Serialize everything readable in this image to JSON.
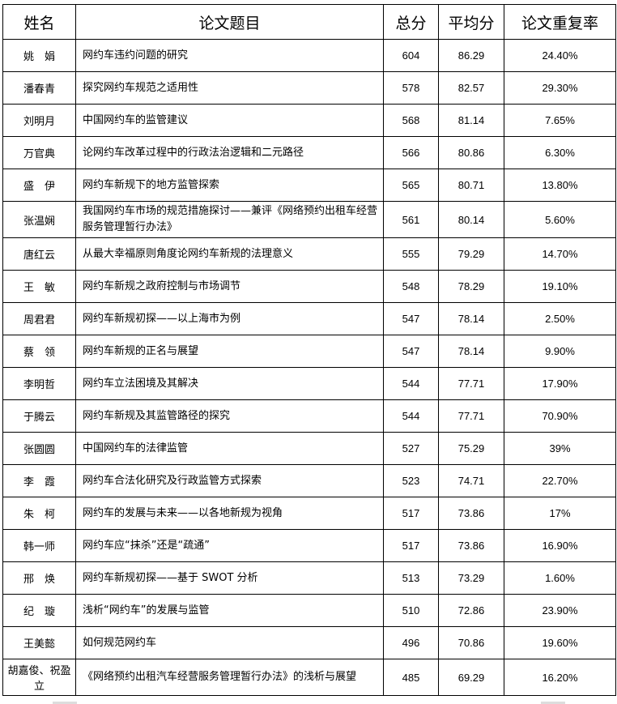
{
  "headers": [
    "姓名",
    "论文题目",
    "总分",
    "平均分",
    "论文重复率"
  ],
  "rows": [
    {
      "name": "姚　娟",
      "title": "网约车违约问题的研究",
      "total": "604",
      "avg": "86.29",
      "rate": "24.40%"
    },
    {
      "name": "潘春青",
      "title": "探究网约车规范之适用性",
      "total": "578",
      "avg": "82.57",
      "rate": "29.30%"
    },
    {
      "name": "刘明月",
      "title": "中国网约车的监管建议",
      "total": "568",
      "avg": "81.14",
      "rate": "7.65%"
    },
    {
      "name": "万官典",
      "title": "论网约车改革过程中的行政法治逻辑和二元路径",
      "total": "566",
      "avg": "80.86",
      "rate": "6.30%"
    },
    {
      "name": "盛　伊",
      "title": "网约车新规下的地方监管探索",
      "total": "565",
      "avg": "80.71",
      "rate": "13.80%"
    },
    {
      "name": "张温娴",
      "title": "我国网约车市场的规范措施探讨——兼评《网络预约出租车经营服务管理暂行办法》",
      "total": "561",
      "avg": "80.14",
      "rate": "5.60%"
    },
    {
      "name": "唐红云",
      "title": "从最大幸福原则角度论网约车新规的法理意义",
      "total": "555",
      "avg": "79.29",
      "rate": "14.70%"
    },
    {
      "name": "王　敏",
      "title": "网约车新规之政府控制与市场调节",
      "total": "548",
      "avg": "78.29",
      "rate": "19.10%"
    },
    {
      "name": "周君君",
      "title": "网约车新规初探——以上海市为例",
      "total": "547",
      "avg": "78.14",
      "rate": "2.50%"
    },
    {
      "name": "蔡　领",
      "title": "网约车新规的正名与展望",
      "total": "547",
      "avg": "78.14",
      "rate": "9.90%"
    },
    {
      "name": "李明哲",
      "title": "网约车立法困境及其解决",
      "total": "544",
      "avg": "77.71",
      "rate": "17.90%"
    },
    {
      "name": "于腾云",
      "title": "网约车新规及其监管路径的探究",
      "total": "544",
      "avg": "77.71",
      "rate": "70.90%"
    },
    {
      "name": "张圆圆",
      "title": "中国网约车的法律监管",
      "total": "527",
      "avg": "75.29",
      "rate": "39%"
    },
    {
      "name": "李　霞",
      "title": "网约车合法化研究及行政监管方式探索",
      "total": "523",
      "avg": "74.71",
      "rate": "22.70%"
    },
    {
      "name": "朱　柯",
      "title": "网约车的发展与未来——以各地新规为视角",
      "total": "517",
      "avg": "73.86",
      "rate": "17%"
    },
    {
      "name": "韩一师",
      "title": "网约车应“抹杀”还是“疏通”",
      "total": "517",
      "avg": "73.86",
      "rate": "16.90%"
    },
    {
      "name": "邢　焕",
      "title": "网约车新规初探——基于 SWOT 分析",
      "total": "513",
      "avg": "73.29",
      "rate": "1.60%"
    },
    {
      "name": "纪　璇",
      "title": "浅析“网约车”的发展与监管",
      "total": "510",
      "avg": "72.86",
      "rate": "23.90%"
    },
    {
      "name": "王美懿",
      "title": "如何规范网约车",
      "total": "496",
      "avg": "70.86",
      "rate": "19.60%"
    },
    {
      "name": "胡嘉俊、祝盈立",
      "title": "《网络预约出租汽车经营服务管理暂行办法》的浅析与展望",
      "total": "485",
      "avg": "69.29",
      "rate": "16.20%"
    }
  ]
}
